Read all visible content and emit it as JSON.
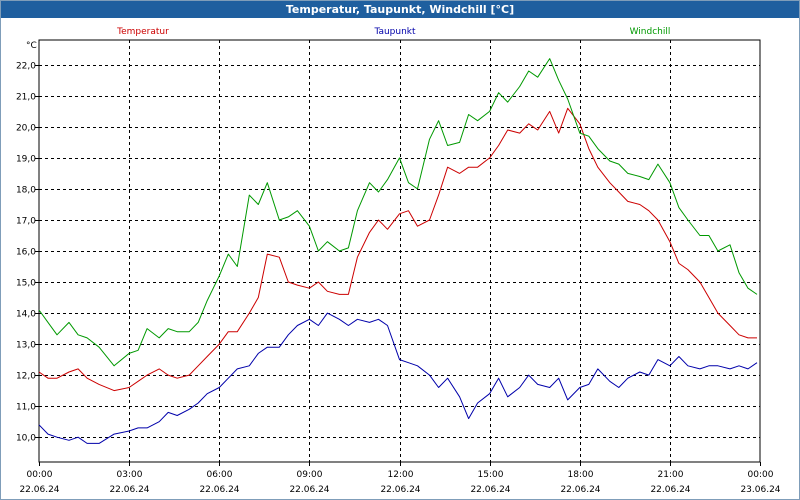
{
  "window": {
    "title": "Temperatur, Taupunkt, Windchill [°C]"
  },
  "chart_data": {
    "type": "line",
    "title": "Temperatur, Taupunkt, Windchill [°C]",
    "ylabel": "°C",
    "ylim": [
      9.2,
      22.8
    ],
    "yticks": [
      "10,0",
      "11,0",
      "12,0",
      "13,0",
      "14,0",
      "15,0",
      "16,0",
      "17,0",
      "18,0",
      "19,0",
      "20,0",
      "21,0",
      "22,0"
    ],
    "xlim": [
      0,
      24
    ],
    "xticks": [
      {
        "time": "00:00",
        "date": "22.06.24"
      },
      {
        "time": "03:00",
        "date": "22.06.24"
      },
      {
        "time": "06:00",
        "date": "22.06.24"
      },
      {
        "time": "09:00",
        "date": "22.06.24"
      },
      {
        "time": "12:00",
        "date": "22.06.24"
      },
      {
        "time": "15:00",
        "date": "22.06.24"
      },
      {
        "time": "18:00",
        "date": "22.06.24"
      },
      {
        "time": "21:00",
        "date": "22.06.24"
      },
      {
        "time": "00:00",
        "date": "23.06.24"
      }
    ],
    "grid": true,
    "series": [
      {
        "name": "Temperatur",
        "color": "#cc0000",
        "x": [
          0,
          0.3,
          0.6,
          1,
          1.3,
          1.6,
          2,
          2.5,
          3,
          3.3,
          3.6,
          4,
          4.3,
          4.6,
          5,
          5.3,
          5.6,
          6,
          6.3,
          6.6,
          7,
          7.3,
          7.6,
          8,
          8.3,
          8.6,
          9,
          9.3,
          9.6,
          10,
          10.3,
          10.6,
          11,
          11.3,
          11.6,
          12,
          12.3,
          12.6,
          13,
          13.3,
          13.6,
          14,
          14.3,
          14.6,
          15,
          15.3,
          15.6,
          16,
          16.3,
          16.6,
          17,
          17.3,
          17.6,
          18,
          18.3,
          18.6,
          19,
          19.3,
          19.6,
          20,
          20.3,
          20.6,
          21,
          21.3,
          21.6,
          22,
          22.3,
          22.6,
          23,
          23.3,
          23.6,
          23.9
        ],
        "values": [
          12.1,
          11.9,
          11.9,
          12.1,
          12.2,
          11.9,
          11.7,
          11.5,
          11.6,
          11.8,
          12.0,
          12.2,
          12.0,
          11.9,
          12.0,
          12.3,
          12.6,
          13.0,
          13.4,
          13.4,
          14.0,
          14.5,
          15.9,
          15.8,
          15.0,
          14.9,
          14.8,
          15.0,
          14.7,
          14.6,
          14.6,
          15.8,
          16.6,
          17.0,
          16.7,
          17.2,
          17.3,
          16.8,
          17.0,
          17.8,
          18.7,
          18.5,
          18.7,
          18.7,
          19.0,
          19.4,
          19.9,
          19.8,
          20.1,
          19.9,
          20.5,
          19.8,
          20.6,
          20.1,
          19.3,
          18.7,
          18.2,
          17.9,
          17.6,
          17.5,
          17.3,
          17.0,
          16.3,
          15.6,
          15.4,
          15.0,
          14.5,
          14.0,
          13.6,
          13.3,
          13.2,
          13.2
        ]
      },
      {
        "name": "Taupunkt",
        "color": "#0000aa",
        "x": [
          0,
          0.3,
          0.6,
          1,
          1.3,
          1.6,
          2,
          2.5,
          3,
          3.3,
          3.6,
          4,
          4.3,
          4.6,
          5,
          5.3,
          5.6,
          6,
          6.3,
          6.6,
          7,
          7.3,
          7.6,
          8,
          8.3,
          8.6,
          9,
          9.3,
          9.6,
          10,
          10.3,
          10.6,
          11,
          11.3,
          11.6,
          12,
          12.3,
          12.6,
          13,
          13.3,
          13.6,
          14,
          14.3,
          14.6,
          15,
          15.3,
          15.6,
          16,
          16.3,
          16.6,
          17,
          17.3,
          17.6,
          18,
          18.3,
          18.6,
          19,
          19.3,
          19.6,
          20,
          20.3,
          20.6,
          21,
          21.3,
          21.6,
          22,
          22.3,
          22.6,
          23,
          23.3,
          23.6,
          23.9
        ],
        "values": [
          10.4,
          10.1,
          10.0,
          9.9,
          10.0,
          9.8,
          9.8,
          10.1,
          10.2,
          10.3,
          10.3,
          10.5,
          10.8,
          10.7,
          10.9,
          11.1,
          11.4,
          11.6,
          11.9,
          12.2,
          12.3,
          12.7,
          12.9,
          12.9,
          13.3,
          13.6,
          13.8,
          13.6,
          14.0,
          13.8,
          13.6,
          13.8,
          13.7,
          13.8,
          13.6,
          12.5,
          12.4,
          12.3,
          12.0,
          11.6,
          11.9,
          11.3,
          10.6,
          11.1,
          11.4,
          11.9,
          11.3,
          11.6,
          12.0,
          11.7,
          11.6,
          11.9,
          11.2,
          11.6,
          11.7,
          12.2,
          11.8,
          11.6,
          11.9,
          12.1,
          12.0,
          12.5,
          12.3,
          12.6,
          12.3,
          12.2,
          12.3,
          12.3,
          12.2,
          12.3,
          12.2,
          12.4
        ]
      },
      {
        "name": "Windchill",
        "color": "#009900",
        "x": [
          0,
          0.3,
          0.6,
          1,
          1.3,
          1.6,
          2,
          2.5,
          3,
          3.3,
          3.6,
          4,
          4.3,
          4.6,
          5,
          5.3,
          5.6,
          6,
          6.3,
          6.6,
          7,
          7.3,
          7.6,
          8,
          8.3,
          8.6,
          9,
          9.3,
          9.6,
          10,
          10.3,
          10.6,
          11,
          11.3,
          11.6,
          12,
          12.3,
          12.6,
          13,
          13.3,
          13.6,
          14,
          14.3,
          14.6,
          15,
          15.3,
          15.6,
          16,
          16.3,
          16.6,
          17,
          17.3,
          17.6,
          18,
          18.3,
          18.6,
          19,
          19.3,
          19.6,
          20,
          20.3,
          20.6,
          21,
          21.3,
          21.6,
          22,
          22.3,
          22.6,
          23,
          23.3,
          23.6,
          23.9
        ],
        "values": [
          14.1,
          13.7,
          13.3,
          13.7,
          13.3,
          13.2,
          12.9,
          12.3,
          12.7,
          12.8,
          13.5,
          13.2,
          13.5,
          13.4,
          13.4,
          13.7,
          14.4,
          15.2,
          15.9,
          15.5,
          17.8,
          17.5,
          18.2,
          17.0,
          17.1,
          17.3,
          16.8,
          16.0,
          16.3,
          16.0,
          16.1,
          17.3,
          18.2,
          17.9,
          18.3,
          19.0,
          18.2,
          18.0,
          19.6,
          20.2,
          19.4,
          19.5,
          20.4,
          20.2,
          20.5,
          21.1,
          20.8,
          21.3,
          21.8,
          21.6,
          22.2,
          21.5,
          20.9,
          19.8,
          19.7,
          19.3,
          18.9,
          18.8,
          18.5,
          18.4,
          18.3,
          18.8,
          18.2,
          17.4,
          17.0,
          16.5,
          16.5,
          16.0,
          16.2,
          15.3,
          14.8,
          14.6
        ]
      }
    ]
  }
}
